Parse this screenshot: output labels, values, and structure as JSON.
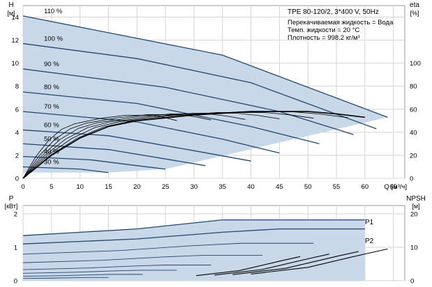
{
  "chart_data": [
    {
      "type": "line",
      "title": "TPE 80-120/2, 3*400 V, 50Hz",
      "xlabel": "Q [м³/ч]",
      "ylabel_left": "H",
      "ylabel_left_unit": "[м]",
      "ylabel_right": "eta",
      "ylabel_right_unit": "[%]",
      "xlim": [
        0,
        67
      ],
      "ylim_left": [
        0,
        15
      ],
      "ylim_right": [
        0,
        150
      ],
      "x_ticks": [
        0,
        5,
        10,
        15,
        20,
        25,
        30,
        35,
        40,
        45,
        50,
        55,
        60,
        65
      ],
      "y_ticks_left": [
        0,
        2,
        4,
        6,
        8,
        10,
        12,
        14
      ],
      "y_ticks_right": [
        0,
        20,
        40,
        60,
        80,
        100
      ],
      "grid": true,
      "info_lines": [
        "Перекачиваемая жидкость = Вода",
        "Темп. жидкости = 20 °C",
        "Плотность = 998.2 кг/м³"
      ],
      "head_curves": [
        {
          "name": "110 %",
          "points": [
            [
              0,
              14.1
            ],
            [
              35,
              10.7
            ],
            [
              64,
              5.3
            ]
          ]
        },
        {
          "name": "100 %",
          "points": [
            [
              0,
              11.7
            ],
            [
              20,
              10.4
            ],
            [
              40,
              8.3
            ],
            [
              62,
              4.3
            ]
          ]
        },
        {
          "name": "90 %",
          "points": [
            [
              0,
              9.5
            ],
            [
              25,
              7.9
            ],
            [
              45,
              5.8
            ],
            [
              58,
              3.8
            ]
          ]
        },
        {
          "name": "80 %",
          "points": [
            [
              0,
              7.5
            ],
            [
              20,
              6.5
            ],
            [
              40,
              4.5
            ],
            [
              52,
              3.0
            ]
          ]
        },
        {
          "name": "70 %",
          "points": [
            [
              0,
              5.8
            ],
            [
              20,
              4.9
            ],
            [
              35,
              3.4
            ],
            [
              45,
              2.2
            ]
          ]
        },
        {
          "name": "60 %",
          "points": [
            [
              0,
              4.2
            ],
            [
              15,
              3.7
            ],
            [
              30,
              2.4
            ],
            [
              40,
              1.5
            ]
          ]
        },
        {
          "name": "50 %",
          "points": [
            [
              0,
              3.0
            ],
            [
              15,
              2.5
            ],
            [
              26,
              1.6
            ],
            [
              32,
              1.1
            ]
          ]
        },
        {
          "name": "40 %",
          "points": [
            [
              0,
              1.9
            ],
            [
              12,
              1.6
            ],
            [
              20,
              1.1
            ],
            [
              25,
              0.8
            ]
          ]
        },
        {
          "name": "30 %",
          "points": [
            [
              0,
              1.0
            ],
            [
              10,
              0.8
            ],
            [
              15,
              0.5
            ]
          ]
        }
      ],
      "envelope": [
        [
          0,
          14.1
        ],
        [
          35,
          10.7
        ],
        [
          64,
          5.3
        ],
        [
          25,
          0.8
        ],
        [
          15,
          0.5
        ],
        [
          0,
          0.5
        ]
      ],
      "eta_curve": [
        [
          0,
          0
        ],
        [
          5,
          20
        ],
        [
          10,
          35
        ],
        [
          15,
          45
        ],
        [
          20,
          50
        ],
        [
          30,
          55
        ],
        [
          40,
          58
        ],
        [
          50,
          58
        ],
        [
          55,
          56
        ],
        [
          60,
          53
        ]
      ]
    },
    {
      "type": "line",
      "ylabel_left": "P",
      "ylabel_left_unit": "[кВт]",
      "ylabel_right": "NPSH",
      "ylabel_right_unit": "[м]",
      "xlim": [
        0,
        67
      ],
      "ylim_left": [
        0,
        2.25
      ],
      "ylim_right": [
        0,
        22.5
      ],
      "y_ticks_left": [
        0,
        1,
        2
      ],
      "y_ticks_right": [
        0,
        10,
        20
      ],
      "grid": true,
      "series_labels": [
        "P1",
        "P2"
      ],
      "P1": [
        [
          0,
          1.35
        ],
        [
          20,
          1.55
        ],
        [
          35,
          1.82
        ],
        [
          60,
          1.82
        ]
      ],
      "P2": [
        [
          0,
          1.1
        ],
        [
          20,
          1.25
        ],
        [
          35,
          1.45
        ],
        [
          45,
          1.55
        ],
        [
          60,
          1.55
        ]
      ],
      "npsh_curve": [
        [
          40,
          0.2
        ],
        [
          50,
          0.4
        ],
        [
          60,
          0.8
        ],
        [
          64,
          0.95
        ]
      ]
    }
  ]
}
